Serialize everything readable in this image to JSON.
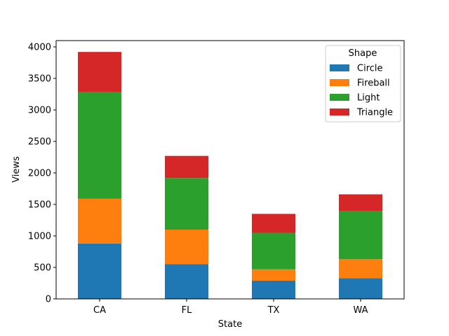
{
  "chart_data": {
    "type": "bar",
    "stacked": true,
    "categories": [
      "CA",
      "FL",
      "TX",
      "WA"
    ],
    "series": [
      {
        "name": "Circle",
        "color": "#1f77b4",
        "values": [
          880,
          550,
          290,
          330
        ]
      },
      {
        "name": "Fireball",
        "color": "#ff7f0e",
        "values": [
          710,
          550,
          180,
          300
        ]
      },
      {
        "name": "Light",
        "color": "#2ca02c",
        "values": [
          1690,
          820,
          580,
          770
        ]
      },
      {
        "name": "Triangle",
        "color": "#d62728",
        "values": [
          640,
          350,
          300,
          260
        ]
      }
    ],
    "xlabel": "State",
    "ylabel": "Views",
    "ylim": [
      0,
      4100
    ],
    "yticks": [
      0,
      500,
      1000,
      1500,
      2000,
      2500,
      3000,
      3500,
      4000
    ],
    "legend": {
      "title": "Shape",
      "placement": "top-right"
    },
    "grid": false
  }
}
